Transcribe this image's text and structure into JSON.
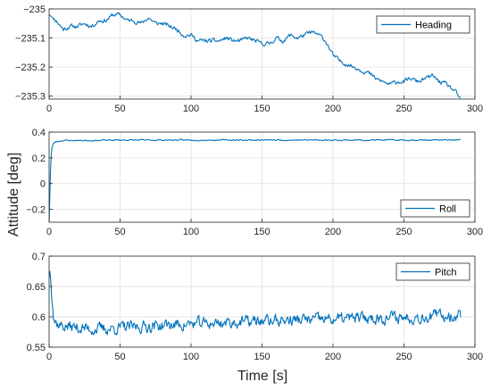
{
  "figure": {
    "ylabel": "Attitude [deg]",
    "xlabel": "Time [s]"
  },
  "colors": {
    "series": "#0072BD",
    "grid": "#e6e6e6",
    "axes": "#262626"
  },
  "chart_data": [
    {
      "type": "line",
      "name": "heading",
      "legend": "Heading",
      "legend_position": "top-right",
      "grid": true,
      "xlim": [
        0,
        300
      ],
      "ylim": [
        -235.31,
        -235.0
      ],
      "xticks": [
        0,
        50,
        100,
        150,
        200,
        250,
        300
      ],
      "xtick_labels": [
        "0",
        "50",
        "100",
        "150",
        "200",
        "250",
        "300"
      ],
      "yticks": [
        -235.3,
        -235.2,
        -235.1,
        -235.0
      ],
      "ytick_labels": [
        "−235.3",
        "−235.2",
        "−235.1",
        "−235"
      ],
      "x": [
        0,
        5,
        10,
        15,
        20,
        25,
        30,
        35,
        40,
        45,
        50,
        55,
        60,
        65,
        70,
        75,
        80,
        85,
        90,
        95,
        100,
        105,
        110,
        115,
        120,
        125,
        130,
        135,
        140,
        145,
        150,
        155,
        160,
        165,
        170,
        175,
        180,
        185,
        190,
        193,
        196,
        200,
        205,
        210,
        215,
        220,
        225,
        230,
        235,
        240,
        245,
        250,
        255,
        260,
        265,
        270,
        275,
        280,
        285,
        290
      ],
      "y": [
        -235.02,
        -235.04,
        -235.07,
        -235.06,
        -235.06,
        -235.05,
        -235.06,
        -235.04,
        -235.04,
        -235.02,
        -235.02,
        -235.04,
        -235.04,
        -235.05,
        -235.03,
        -235.05,
        -235.05,
        -235.06,
        -235.07,
        -235.09,
        -235.09,
        -235.11,
        -235.11,
        -235.11,
        -235.11,
        -235.1,
        -235.11,
        -235.11,
        -235.1,
        -235.11,
        -235.12,
        -235.12,
        -235.1,
        -235.11,
        -235.09,
        -235.1,
        -235.09,
        -235.08,
        -235.09,
        -235.1,
        -235.12,
        -235.16,
        -235.18,
        -235.19,
        -235.2,
        -235.21,
        -235.22,
        -235.24,
        -235.25,
        -235.26,
        -235.25,
        -235.25,
        -235.24,
        -235.25,
        -235.24,
        -235.23,
        -235.25,
        -235.26,
        -235.28,
        -235.31
      ],
      "noise": 0.006,
      "seed": 11
    },
    {
      "type": "line",
      "name": "roll",
      "legend": "Roll",
      "legend_position": "bottom-right",
      "grid": true,
      "xlim": [
        0,
        300
      ],
      "ylim": [
        -0.3,
        0.4
      ],
      "xticks": [
        0,
        50,
        100,
        150,
        200,
        250,
        300
      ],
      "xtick_labels": [
        "0",
        "50",
        "100",
        "150",
        "200",
        "250",
        "300"
      ],
      "yticks": [
        -0.2,
        0,
        0.2,
        0.4
      ],
      "ytick_labels": [
        "−0.2",
        "0",
        "0.2",
        "0.4"
      ],
      "x": [
        0,
        0.5,
        1,
        1.5,
        2,
        3,
        4,
        5,
        7,
        10,
        20,
        30,
        50,
        100,
        150,
        200,
        250,
        290
      ],
      "y": [
        -0.3,
        -0.1,
        0.1,
        0.22,
        0.28,
        0.31,
        0.32,
        0.325,
        0.33,
        0.335,
        0.335,
        0.335,
        0.338,
        0.338,
        0.338,
        0.338,
        0.338,
        0.338
      ],
      "noise": 0.004,
      "seed": 23
    },
    {
      "type": "line",
      "name": "pitch",
      "legend": "Pitch",
      "legend_position": "top-right",
      "grid": true,
      "xlim": [
        0,
        300
      ],
      "ylim": [
        0.55,
        0.7
      ],
      "xticks": [
        0,
        50,
        100,
        150,
        200,
        250,
        300
      ],
      "xtick_labels": [
        "0",
        "50",
        "100",
        "150",
        "200",
        "250",
        "300"
      ],
      "yticks": [
        0.55,
        0.6,
        0.65,
        0.7
      ],
      "ytick_labels": [
        "0.55",
        "0.6",
        "0.65",
        "0.7"
      ],
      "x": [
        0,
        0.5,
        1,
        1.5,
        2,
        3,
        4,
        6,
        10,
        20,
        30,
        40,
        50,
        60,
        80,
        100,
        120,
        140,
        160,
        180,
        200,
        220,
        240,
        260,
        280,
        290
      ],
      "y": [
        0.665,
        0.675,
        0.665,
        0.645,
        0.625,
        0.605,
        0.595,
        0.588,
        0.585,
        0.582,
        0.58,
        0.58,
        0.582,
        0.583,
        0.586,
        0.588,
        0.59,
        0.592,
        0.594,
        0.595,
        0.596,
        0.598,
        0.599,
        0.6,
        0.602,
        0.603
      ],
      "noise": 0.008,
      "seed": 37
    }
  ]
}
